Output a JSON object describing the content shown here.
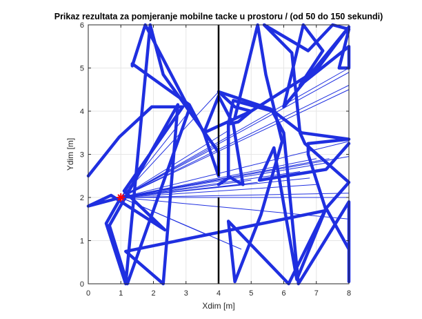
{
  "chart_data": {
    "type": "line",
    "title": "Prikaz rezultata za pomjeranje mobilne tacke u prostoru / (od 50 do 150 sekundi)",
    "xlabel": "Xdim [m]",
    "ylabel": "Ydim [m]",
    "xlim": [
      0,
      8
    ],
    "ylim": [
      0,
      6
    ],
    "xticks": [
      0,
      1,
      2,
      3,
      4,
      5,
      6,
      7,
      8
    ],
    "yticks": [
      0,
      1,
      2,
      3,
      4,
      5,
      6
    ],
    "grid": true,
    "legend": "none",
    "colors": {
      "trajectory": "#1f2fe0",
      "rays": "#1f2fe0",
      "wall": "#000000",
      "marker": "#ff0000",
      "grid": "#e6e6e6",
      "axes": "#262626"
    },
    "series": [
      {
        "role": "trajectory",
        "points": [
          [
            0,
            2.5
          ],
          [
            0.95,
            3.4
          ],
          [
            1.95,
            4.1
          ],
          [
            2.9,
            4.1
          ],
          [
            1.1,
            2.15
          ],
          [
            2.35,
            1.25
          ],
          [
            0.7,
            2.05
          ],
          [
            0,
            1.8
          ],
          [
            1.0,
            2.0
          ],
          [
            0.55,
            1.4
          ],
          [
            1.15,
            0
          ],
          [
            1.9,
            6.0
          ],
          [
            2.3,
            4.85
          ],
          [
            4.0,
            3.05
          ],
          [
            4.0,
            2.5
          ],
          [
            3.55,
            3.5
          ],
          [
            3.1,
            4.15
          ],
          [
            1.35,
            5.1
          ],
          [
            1.35,
            5.05
          ],
          [
            1.75,
            6.0
          ],
          [
            3.1,
            4.05
          ],
          [
            1.2,
            0.0
          ],
          [
            0.65,
            1.35
          ],
          [
            2.75,
            4.15
          ],
          [
            2.3,
            0
          ],
          [
            1.15,
            0.75
          ],
          [
            7.3,
            1.7
          ],
          [
            6.75,
            3.0
          ],
          [
            6.75,
            3.25
          ],
          [
            8,
            3.35
          ],
          [
            6.55,
            3.5
          ],
          [
            5.6,
            4.05
          ],
          [
            4.0,
            4.45
          ],
          [
            4.5,
            4.1
          ],
          [
            5.0,
            4.0
          ],
          [
            4.6,
            3.75
          ],
          [
            4.3,
            3.7
          ],
          [
            4.3,
            2.45
          ],
          [
            4.0,
            2.3
          ]
        ]
      },
      {
        "role": "trajectory",
        "points": [
          [
            4.5,
            3.85
          ],
          [
            5.2,
            6.0
          ],
          [
            5.45,
            4.85
          ],
          [
            5.95,
            3.3
          ],
          [
            5.3,
            1.6
          ],
          [
            4.5,
            0.05
          ],
          [
            4.3,
            1.45
          ],
          [
            6.15,
            0
          ],
          [
            7.3,
            1.75
          ],
          [
            8,
            0.8
          ],
          [
            8,
            0.05
          ],
          [
            8,
            1.9
          ],
          [
            6.45,
            0
          ],
          [
            6.0,
            3.5
          ],
          [
            5.65,
            4.0
          ],
          [
            4.45,
            4.25
          ],
          [
            4.3,
            3.7
          ],
          [
            4.3,
            2.5
          ],
          [
            4.5,
            2.4
          ],
          [
            4.75,
            2.3
          ],
          [
            4.45,
            3.7
          ],
          [
            4.0,
            4.35
          ],
          [
            3.55,
            3.5
          ],
          [
            5.0,
            4.0
          ],
          [
            7.0,
            4.95
          ],
          [
            8,
            5.95
          ],
          [
            6.0,
            4.1
          ],
          [
            6.6,
            6.0
          ],
          [
            7.2,
            5.4
          ],
          [
            6.5,
            4.6
          ],
          [
            8,
            5.5
          ],
          [
            8,
            5.0
          ],
          [
            7.7,
            5.0
          ],
          [
            8,
            5.9
          ],
          [
            7.5,
            6.0
          ],
          [
            6.75,
            5.4
          ],
          [
            5.4,
            6.0
          ],
          [
            6.25,
            5.35
          ],
          [
            6.5,
            3.5
          ],
          [
            6.65,
            3.25
          ],
          [
            8,
            2.35
          ],
          [
            7.3,
            1.75
          ],
          [
            6.4,
            0.1
          ],
          [
            5.7,
            3.15
          ],
          [
            5.25,
            2.4
          ],
          [
            7.3,
            2.65
          ],
          [
            8,
            3.25
          ]
        ]
      }
    ],
    "rays": {
      "origin": [
        1,
        2
      ],
      "endpoints": [
        [
          4,
          3.2
        ],
        [
          4.3,
          3.55
        ],
        [
          4.0,
          4.45
        ],
        [
          8,
          4.9
        ],
        [
          8,
          5.0
        ],
        [
          8,
          4.6
        ],
        [
          8,
          4.5
        ],
        [
          8,
          3.3
        ],
        [
          8,
          2.95
        ],
        [
          7.3,
          2.8
        ],
        [
          7.4,
          2.9
        ],
        [
          7.0,
          2.9
        ],
        [
          6.5,
          2.6
        ],
        [
          6.8,
          2.45
        ],
        [
          7.0,
          2.3
        ],
        [
          8,
          2.1
        ],
        [
          8,
          2.0
        ],
        [
          5.2,
          2.35
        ],
        [
          5.0,
          2.4
        ],
        [
          4.3,
          2.45
        ],
        [
          8,
          1.5
        ],
        [
          3.6,
          1.15
        ],
        [
          4.7,
          0.8
        ],
        [
          4.75,
          2.3
        ],
        [
          5.2,
          2.0
        ],
        [
          6.4,
          2.0
        ],
        [
          3.1,
          4.0
        ],
        [
          2.9,
          4.1
        ]
      ]
    },
    "wall": {
      "x": 4,
      "segments": [
        [
          0,
          2.0
        ],
        [
          2.5,
          6.0
        ]
      ]
    },
    "marker": {
      "x": 1,
      "y": 2,
      "symbol": "star"
    }
  }
}
